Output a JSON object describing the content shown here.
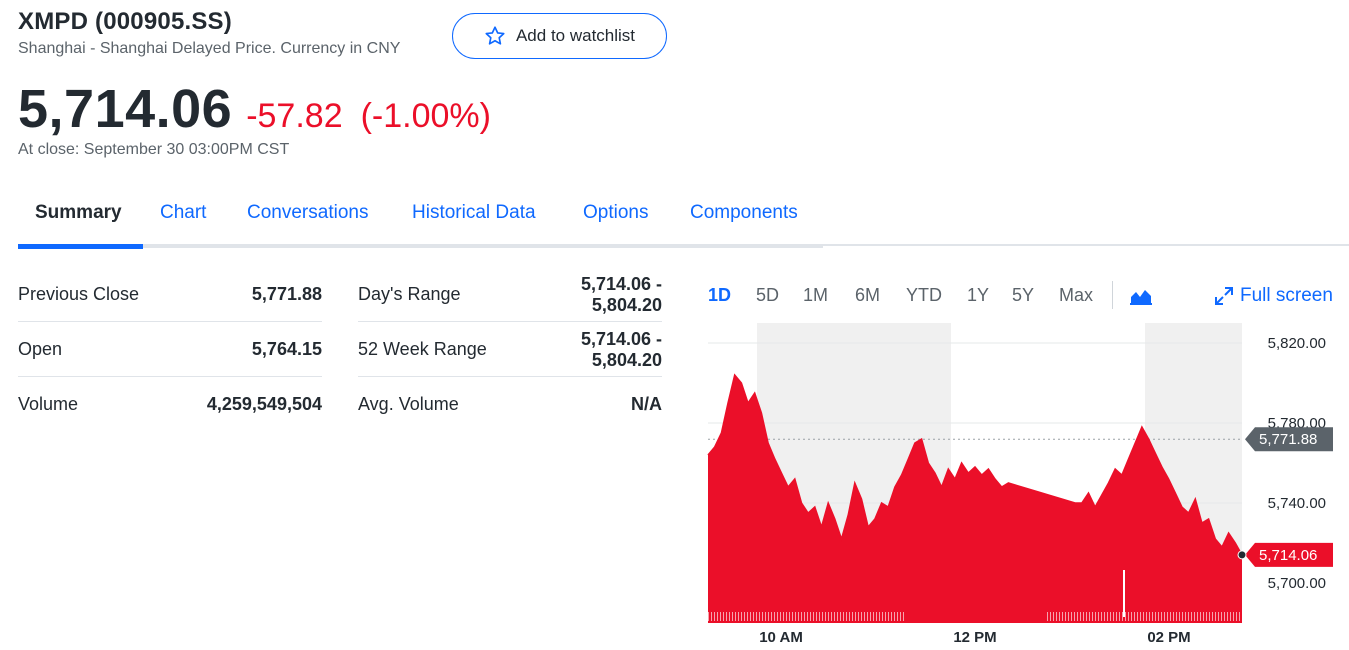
{
  "quote": {
    "title": "XMPD (000905.SS)",
    "exchange": "Shanghai - Shanghai Delayed Price. Currency in CNY",
    "watchlist_label": "Add to watchlist",
    "price": "5,714.06",
    "change": "-57.82",
    "change_pct": "(-1.00%)",
    "close_time": "At close: September 30 03:00PM CST"
  },
  "tabs": [
    {
      "label": "Summary",
      "active": true
    },
    {
      "label": "Chart"
    },
    {
      "label": "Conversations"
    },
    {
      "label": "Historical Data"
    },
    {
      "label": "Options"
    },
    {
      "label": "Components"
    }
  ],
  "stats_left": [
    {
      "label": "Previous Close",
      "value": "5,771.88"
    },
    {
      "label": "Open",
      "value": "5,764.15"
    },
    {
      "label": "Volume",
      "value": "4,259,549,504"
    }
  ],
  "stats_right": [
    {
      "label": "Day's Range",
      "value_line1": "5,714.06 -",
      "value_line2": "5,804.20"
    },
    {
      "label": "52 Week Range",
      "value_line1": "5,714.06 -",
      "value_line2": "5,804.20"
    },
    {
      "label": "Avg. Volume",
      "value_line1": "N/A",
      "value_line2": ""
    }
  ],
  "range_tabs": [
    "1D",
    "5D",
    "1M",
    "6M",
    "YTD",
    "1Y",
    "5Y",
    "Max"
  ],
  "active_range": "1D",
  "fullscreen_label": "Full screen",
  "chart_type_icon": "mountain-chart-icon",
  "colors": {
    "accent": "#0f69ff",
    "negative": "#eb0f29",
    "prev_close_tag": "#5b636a"
  },
  "chart_data": {
    "type": "area",
    "ylim": [
      5680,
      5830
    ],
    "y_ticks": [
      "5,820.00",
      "5,780.00",
      "5,740.00",
      "5,700.00"
    ],
    "y_tick_values": [
      5820,
      5780,
      5740,
      5700
    ],
    "x_ticks": [
      "10 AM",
      "12 PM",
      "02 PM"
    ],
    "previous_close": 5771.88,
    "previous_close_label": "5,771.88",
    "last_price": 5714.06,
    "last_price_label": "5,714.06",
    "series": [
      {
        "values": [
          5764,
          5768,
          5775,
          5790,
          5804,
          5800,
          5790,
          5795,
          5785,
          5770,
          5762,
          5755,
          5748,
          5752,
          5740,
          5735,
          5738,
          5728,
          5740,
          5732,
          5722,
          5734,
          5750,
          5742,
          5728,
          5732,
          5740,
          5738,
          5748,
          5754,
          5762,
          5770,
          5772,
          5760,
          5755,
          5748,
          5757,
          5752,
          5760,
          5755,
          5758,
          5754,
          5757,
          5752,
          5748,
          5750,
          5749,
          5748,
          5747,
          5746,
          5745,
          5744,
          5743,
          5742,
          5741,
          5740,
          5740,
          5745,
          5738,
          5744,
          5750,
          5757,
          5754,
          5762,
          5770,
          5778,
          5772,
          5765,
          5758,
          5752,
          5745,
          5738,
          5735,
          5742,
          5730,
          5732,
          5722,
          5718,
          5725,
          5720,
          5714
        ]
      }
    ]
  }
}
